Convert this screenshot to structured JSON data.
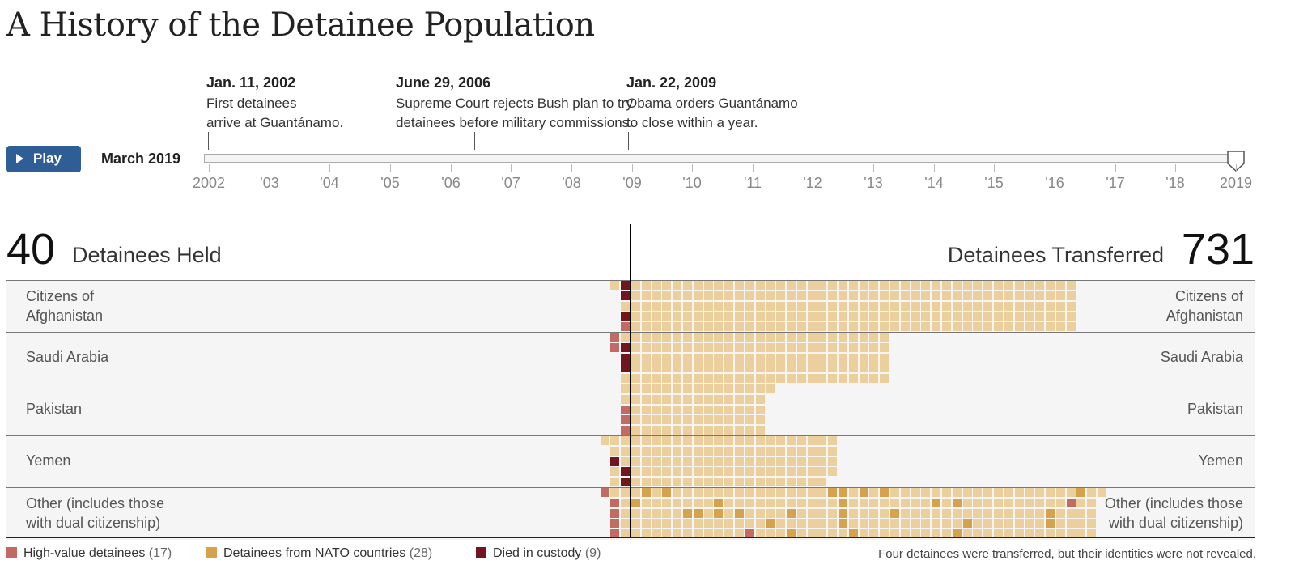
{
  "title": "A History of the Detainee Population",
  "events": [
    {
      "date": "Jan. 11, 2002",
      "line1": "First detainees",
      "line2": "arrive at Guantánamo."
    },
    {
      "date": "June 29, 2006",
      "line1": "Supreme Court rejects Bush plan to try",
      "line2": "detainees before military commissions."
    },
    {
      "date": "Jan. 22, 2009",
      "line1": "Obama orders Guantánamo",
      "line2": "to close within a year."
    }
  ],
  "controls": {
    "play_label": "Play",
    "current_date": "March 2019",
    "slider_position_years": 2019.2
  },
  "years": [
    "2002",
    "'03",
    "'04",
    "'05",
    "'06",
    "'07",
    "'08",
    "'09",
    "'10",
    "'11",
    "'12",
    "'13",
    "'14",
    "'15",
    "'16",
    "'17",
    "'18",
    "2019"
  ],
  "totals": {
    "held_count": "40",
    "held_label": "Detainees Held",
    "transferred_label": "Detainees Transferred",
    "transferred_count": "731"
  },
  "chart_data": {
    "type": "waffle",
    "title": "A History of the Detainee Population",
    "categories": [
      {
        "label_left": [
          "Citizens of",
          "Afghanistan"
        ],
        "label_right": [
          "Citizens of",
          "Afghanistan"
        ],
        "held": 6,
        "transferred": 215
      },
      {
        "label_left": [
          "Saudi Arabia"
        ],
        "label_right": [
          "Saudi Arabia"
        ],
        "held": 7,
        "transferred": 125
      },
      {
        "label_left": [
          "Pakistan"
        ],
        "label_right": [
          "Pakistan"
        ],
        "held": 5,
        "transferred": 66
      },
      {
        "label_left": [
          "Yemen"
        ],
        "label_right": [
          "Yemen"
        ],
        "held": 11,
        "transferred": 99
      },
      {
        "label_left": [
          "Other (includes those",
          "with dual citizenship)"
        ],
        "label_right": [
          "Other (includes those",
          "with dual citizenship)"
        ],
        "held": 11,
        "transferred": 226
      }
    ],
    "legend": [
      {
        "label": "High-value detainees",
        "count": "(17)",
        "color": "#c26b62"
      },
      {
        "label": "Detainees from NATO countries",
        "count": "(28)",
        "color": "#d6a24c"
      },
      {
        "label": "Died in custody",
        "count": "(9)",
        "color": "#73151e"
      }
    ],
    "note": "Four detainees were transferred, but their identities were not revealed."
  },
  "colors": {
    "default_cell": "#ebcf9c",
    "high_value": "#c26b62",
    "nato": "#d6a24c",
    "died": "#73151e",
    "button": "#2e5e95"
  }
}
